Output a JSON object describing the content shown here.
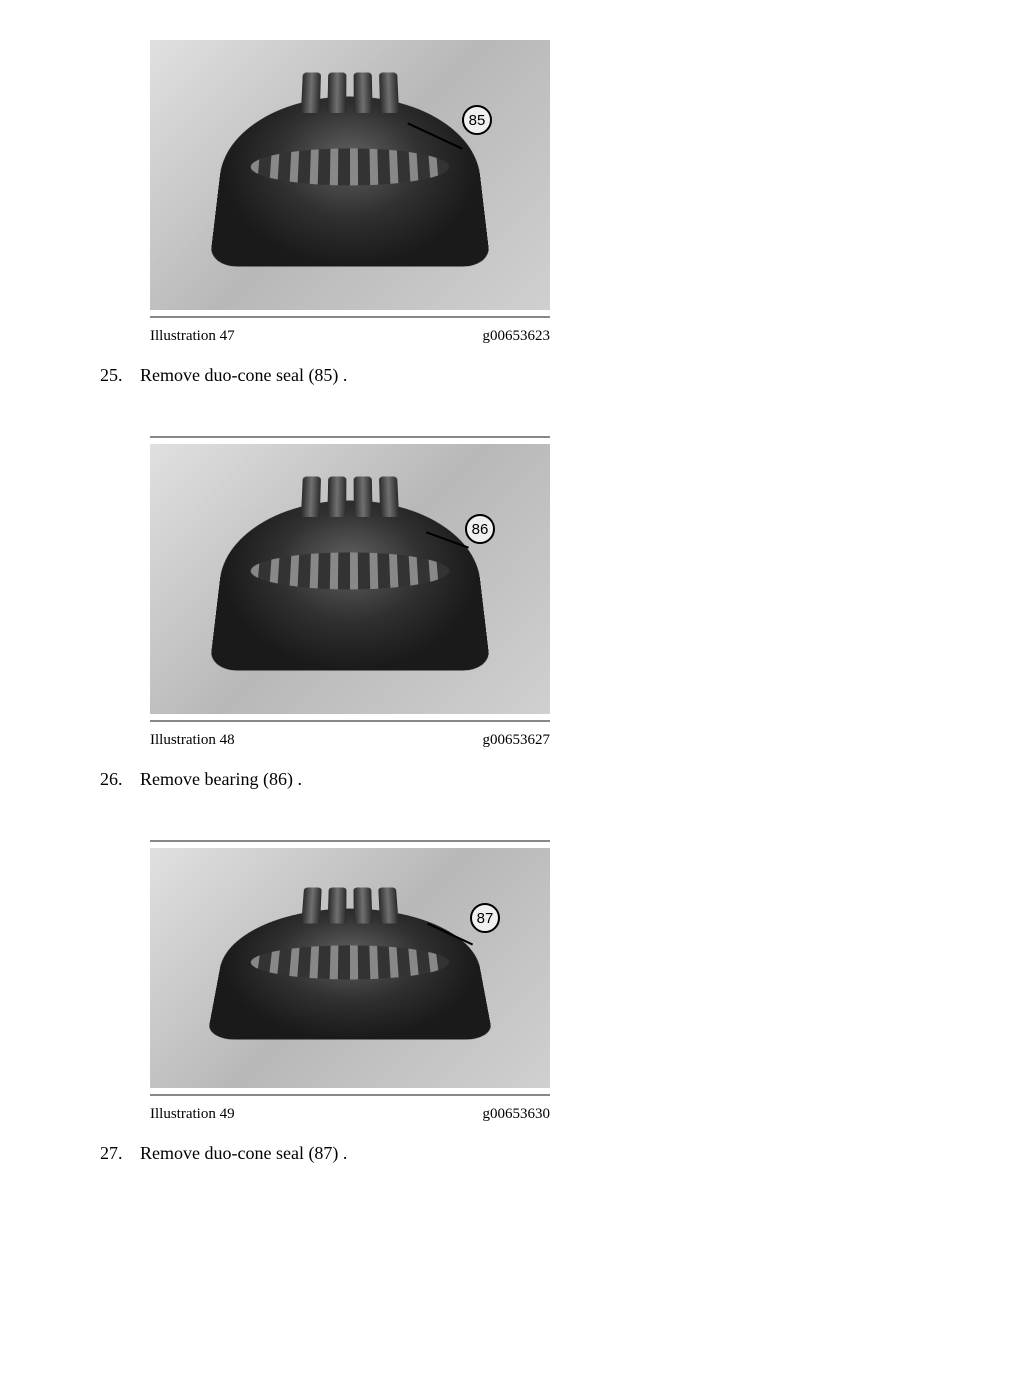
{
  "figures": {
    "fig47": {
      "label": "Illustration 47",
      "code": "g00653623",
      "callout_number": "85"
    },
    "fig48": {
      "label": "Illustration 48",
      "code": "g00653627",
      "callout_number": "86"
    },
    "fig49": {
      "label": "Illustration 49",
      "code": "g00653630",
      "callout_number": "87"
    }
  },
  "steps": {
    "step25": {
      "number": "25.",
      "text": "Remove duo-cone seal (85) ."
    },
    "step26": {
      "number": "26.",
      "text": "Remove bearing (86) ."
    },
    "step27": {
      "number": "27.",
      "text": "Remove duo-cone seal (87) ."
    }
  },
  "colors": {
    "text": "#000000",
    "background": "#ffffff",
    "rule": "#888888"
  },
  "typography": {
    "body_font": "Times New Roman",
    "body_size_pt": 14,
    "caption_size_pt": 11
  }
}
